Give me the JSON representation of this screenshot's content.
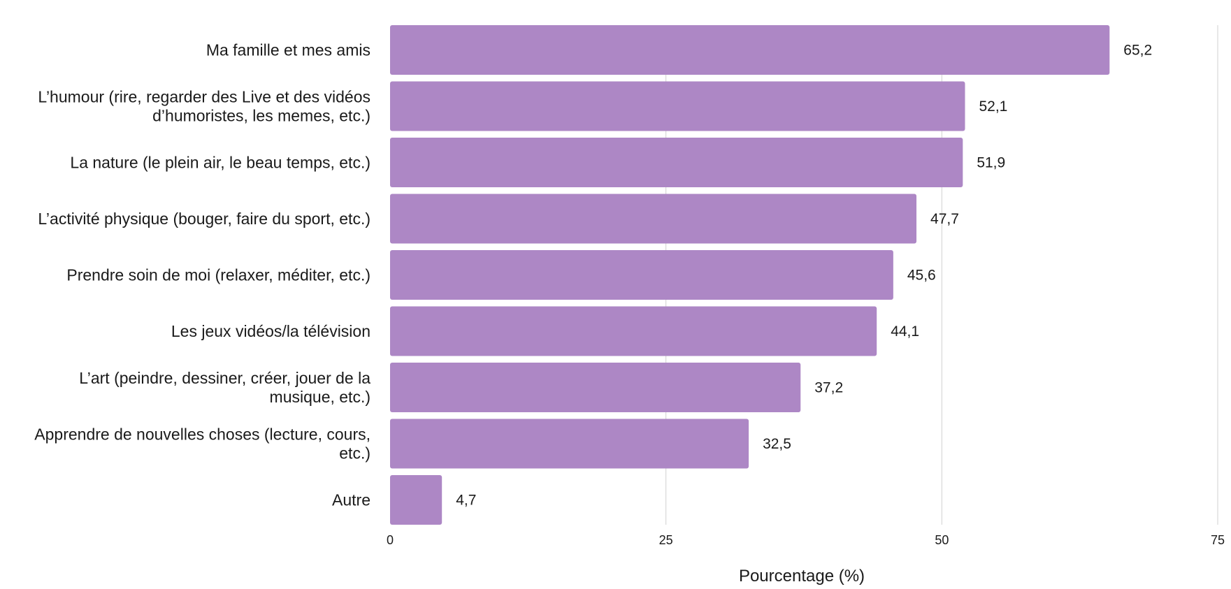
{
  "chart_data": {
    "type": "bar",
    "orientation": "horizontal",
    "categories": [
      [
        "Ma famille et mes amis"
      ],
      [
        "L’humour (rire, regarder des Live et des vidéos",
        "d’humoristes, les memes, etc.)"
      ],
      [
        "La nature (le plein air, le beau temps, etc.)"
      ],
      [
        "L’activité physique (bouger, faire du sport, etc.)"
      ],
      [
        "Prendre soin de moi (relaxer, méditer, etc.)"
      ],
      [
        "Les jeux vidéos/la télévision"
      ],
      [
        "L’art (peindre, dessiner, créer, jouer de la",
        "musique, etc.)"
      ],
      [
        "Apprendre de nouvelles choses (lecture, cours,",
        "etc.)"
      ],
      [
        "Autre"
      ]
    ],
    "values": [
      65.2,
      52.1,
      51.9,
      47.7,
      45.6,
      44.1,
      37.2,
      32.5,
      4.7
    ],
    "value_labels": [
      "65,2",
      "52,1",
      "51,9",
      "47,7",
      "45,6",
      "44,1",
      "37,2",
      "32,5",
      "4,7"
    ],
    "xlabel": "Pourcentage (%)",
    "ylabel": "",
    "xlim": [
      0,
      75
    ],
    "xticks": [
      0,
      25,
      50,
      75
    ],
    "grid": true,
    "legend": "none",
    "bar_color": "#ad87c5"
  }
}
